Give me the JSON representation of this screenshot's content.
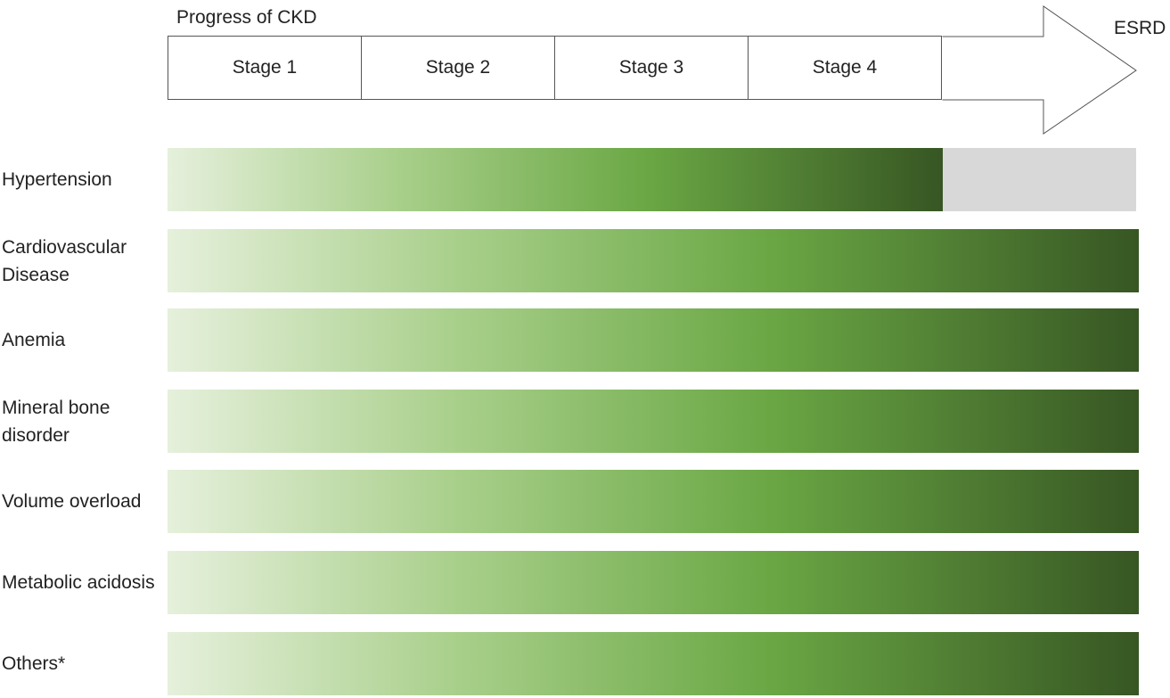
{
  "header": {
    "title": "Progress of CKD",
    "stages": [
      "Stage 1",
      "Stage 2",
      "Stage 3",
      "Stage 4"
    ],
    "endpoint_label": "ESRD"
  },
  "conditions": [
    {
      "label": "Hypertension",
      "extent": 0.8
    },
    {
      "label": "Cardiovascular Disease",
      "extent": 1.0
    },
    {
      "label": "Anemia",
      "extent": 1.0
    },
    {
      "label": "Mineral bone disorder",
      "extent": 1.0
    },
    {
      "label": "Volume overload",
      "extent": 1.0
    },
    {
      "label": "Metabolic acidosis",
      "extent": 1.0
    },
    {
      "label": "Others*",
      "extent": 1.0
    }
  ],
  "colors": {
    "gradient_start": "#e6f0dc",
    "gradient_mid_light": "#a8cf8a",
    "gradient_mid": "#6aa744",
    "gradient_end": "#375623",
    "unfilled": "#d8d8d8",
    "outline": "#555555"
  }
}
